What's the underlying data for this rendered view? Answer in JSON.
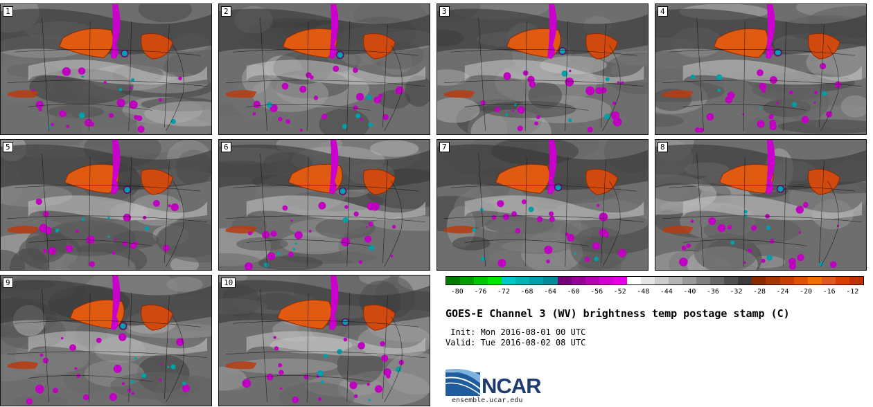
{
  "panels": [
    {
      "label": "1"
    },
    {
      "label": "2"
    },
    {
      "label": "3"
    },
    {
      "label": "4"
    },
    {
      "label": "5"
    },
    {
      "label": "6"
    },
    {
      "label": "7"
    },
    {
      "label": "8"
    },
    {
      "label": "9"
    },
    {
      "label": "10"
    }
  ],
  "colorbar": {
    "colors": [
      "#007a00",
      "#00a000",
      "#00c800",
      "#00e600",
      "#00c8c8",
      "#00b4b4",
      "#00a0aa",
      "#008c96",
      "#780078",
      "#960096",
      "#b400b4",
      "#d200d2",
      "#e600e6",
      "#ffffff",
      "#e6e6e6",
      "#cccccc",
      "#b4b4b4",
      "#9a9a9a",
      "#808080",
      "#686868",
      "#505050",
      "#3c3c3c",
      "#8c2a00",
      "#a83400",
      "#c84000",
      "#e05000",
      "#f07000",
      "#e05a20",
      "#d84000",
      "#c03000"
    ],
    "ticks": [
      "-80",
      "-76",
      "-72",
      "-68",
      "-64",
      "-60",
      "-56",
      "-52",
      "-48",
      "-44",
      "-40",
      "-36",
      "-32",
      "-28",
      "-24",
      "-20",
      "-16",
      "-12"
    ]
  },
  "title": "GOES-E Channel 3 (WV) brightness temp postage stamp (C)",
  "init": " Init: Mon 2016-08-01 00 UTC",
  "valid": "Valid: Tue 2016-08-02 08 UTC",
  "logo": {
    "text": "NCAR",
    "site": "ensemble.ucar.edu",
    "color": "#1f5c9e"
  }
}
